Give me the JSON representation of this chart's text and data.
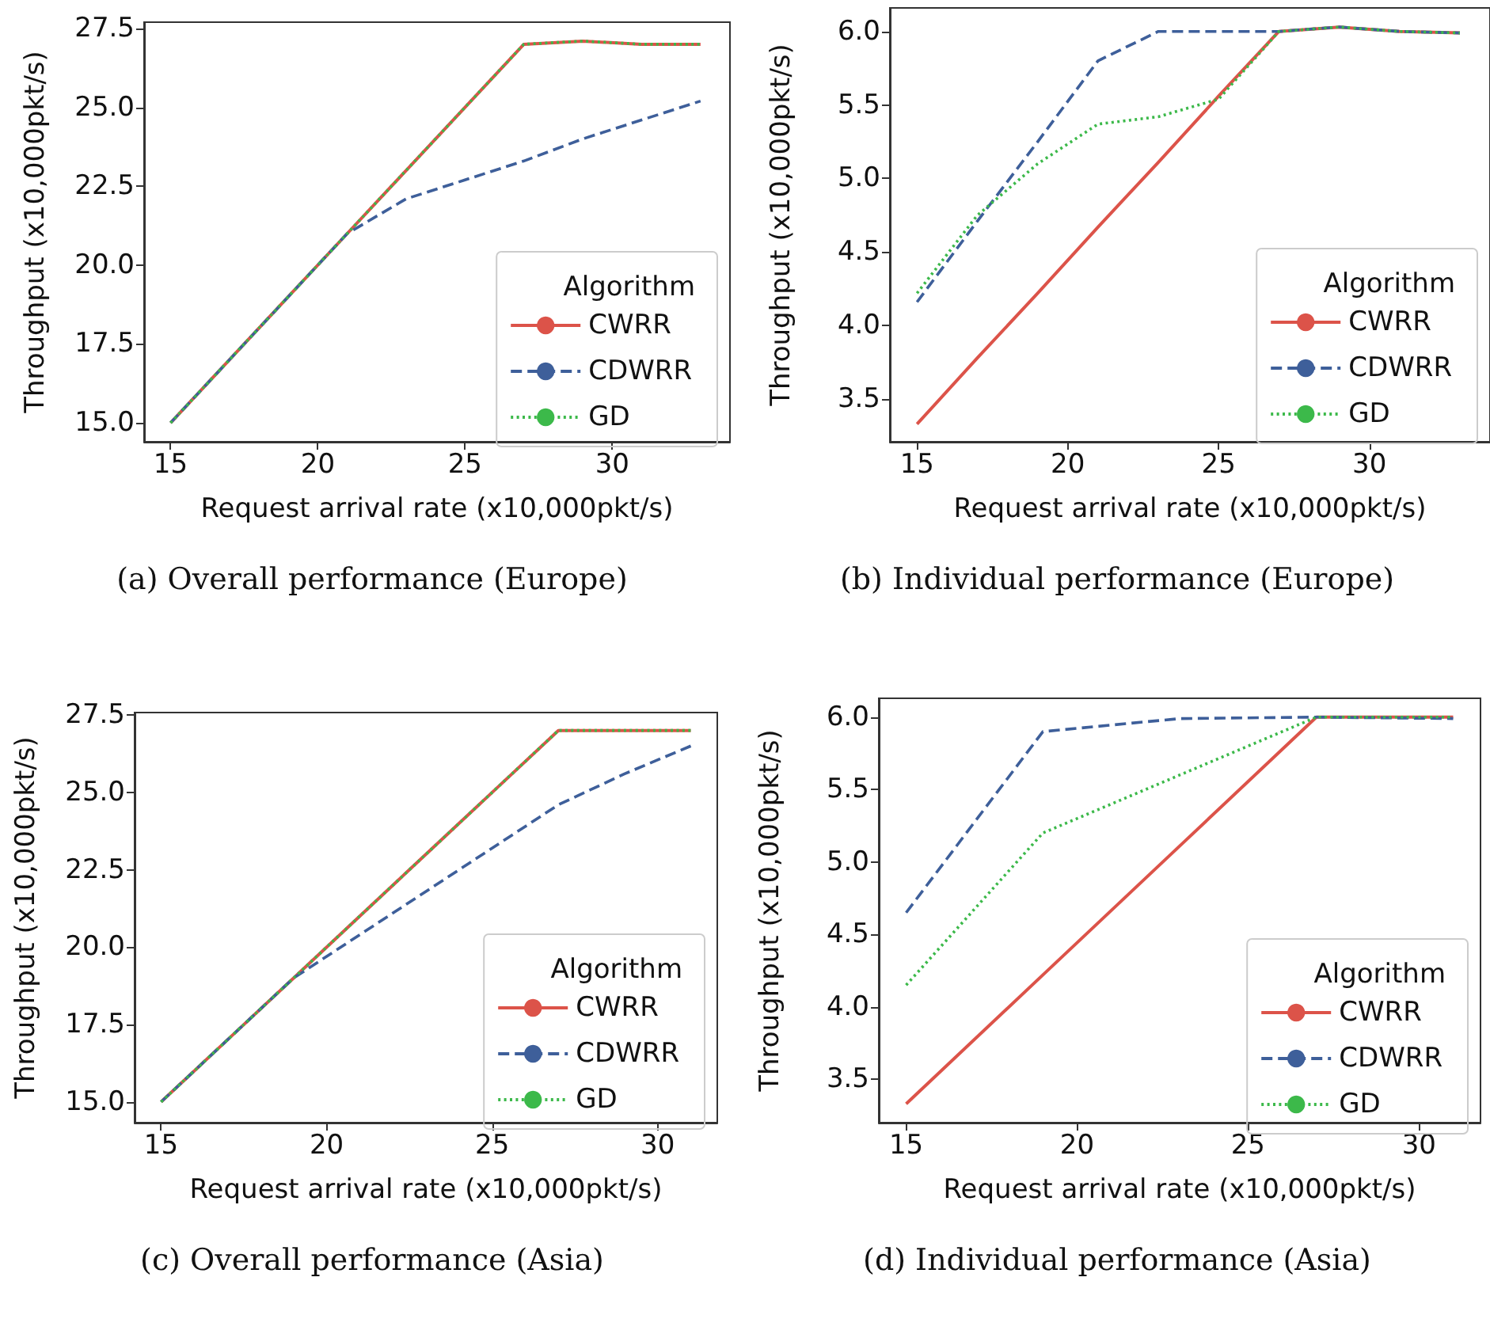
{
  "chart_data": [
    {
      "type": "line",
      "xlabel": "Request arrival rate (x10,000pkt/s)",
      "ylabel": "Throughput (x10,000pkt/s)",
      "legend_title": "Algorithm",
      "legend": "bottom right",
      "grid": false,
      "marker": "none",
      "annotations": [
        "(a) Overall performance (Europe)"
      ],
      "x": [
        15,
        17,
        19,
        21,
        23,
        25,
        27,
        29,
        31,
        33
      ],
      "xlim": [
        14.1,
        34
      ],
      "xticks": [
        15,
        20,
        25,
        30
      ],
      "ylim": [
        14.4,
        27.7
      ],
      "yticks": [
        {
          "value": 15,
          "label": "15.0"
        },
        {
          "value": 17.5,
          "label": "17.5"
        },
        {
          "value": 20,
          "label": "20.0"
        },
        {
          "value": 22.5,
          "label": "22.5"
        },
        {
          "value": 25,
          "label": "25.0"
        },
        {
          "value": 27.5,
          "label": "27.5"
        }
      ],
      "series": [
        {
          "name": "CWRR",
          "color": "#dc5349",
          "line_style": "solid",
          "values": [
            15,
            17,
            19,
            21,
            23,
            25,
            27,
            27.1,
            27,
            27
          ]
        },
        {
          "name": "CDWRR",
          "color": "#3e5f9a",
          "line_style": "dashed",
          "values": [
            15,
            17,
            19,
            21,
            22.1,
            22.7,
            23.3,
            24,
            24.6,
            25.2
          ]
        },
        {
          "name": "GD",
          "color": "#3cb94a",
          "line_style": "dotted",
          "values": [
            15,
            17,
            19,
            21,
            23,
            25,
            27,
            27.1,
            27,
            27
          ]
        }
      ]
    },
    {
      "type": "line",
      "xlabel": "Request arrival rate (x10,000pkt/s)",
      "ylabel": "Throughput (x10,000pkt/s)",
      "legend_title": "Algorithm",
      "legend": "bottom right",
      "grid": false,
      "marker": "none",
      "annotations": [
        "(b) Individual performance (Europe)"
      ],
      "x": [
        15,
        17,
        19,
        21,
        23,
        25,
        27,
        29,
        31,
        33
      ],
      "xlim": [
        14.1,
        34
      ],
      "xticks": [
        15,
        20,
        25,
        30
      ],
      "ylim": [
        3.21,
        6.16
      ],
      "yticks": [
        {
          "value": 3.5,
          "label": "3.5"
        },
        {
          "value": 4,
          "label": "4.0"
        },
        {
          "value": 4.5,
          "label": "4.5"
        },
        {
          "value": 5,
          "label": "5.0"
        },
        {
          "value": 5.5,
          "label": "5.5"
        },
        {
          "value": 6,
          "label": "6.0"
        }
      ],
      "series": [
        {
          "name": "CWRR",
          "color": "#dc5349",
          "line_style": "solid",
          "values": [
            3.33,
            3.78,
            4.22,
            4.67,
            5.11,
            5.56,
            6,
            6.03,
            6,
            5.99
          ]
        },
        {
          "name": "CDWRR",
          "color": "#3e5f9a",
          "line_style": "dashed",
          "values": [
            4.16,
            4.71,
            5.25,
            5.8,
            6,
            6,
            6,
            6.03,
            6,
            5.99
          ]
        },
        {
          "name": "GD",
          "color": "#3cb94a",
          "line_style": "dotted",
          "values": [
            4.22,
            4.75,
            5.1,
            5.37,
            5.42,
            5.54,
            6,
            6.03,
            6,
            5.99
          ]
        }
      ]
    },
    {
      "type": "line",
      "xlabel": "Request arrival rate (x10,000pkt/s)",
      "ylabel": "Throughput (x10,000pkt/s)",
      "legend_title": "Algorithm",
      "legend": "bottom right",
      "grid": false,
      "marker": "none",
      "annotations": [
        "(c) Overall performance (Asia)"
      ],
      "x": [
        15,
        17,
        19,
        21,
        23,
        25,
        27,
        29,
        31
      ],
      "xlim": [
        14.2,
        31.8
      ],
      "xticks": [
        15,
        20,
        25,
        30
      ],
      "ylim": [
        14.33,
        27.58
      ],
      "yticks": [
        {
          "value": 15,
          "label": "15.0"
        },
        {
          "value": 17.5,
          "label": "17.5"
        },
        {
          "value": 20,
          "label": "20.0"
        },
        {
          "value": 22.5,
          "label": "22.5"
        },
        {
          "value": 25,
          "label": "25.0"
        },
        {
          "value": 27.5,
          "label": "27.5"
        }
      ],
      "series": [
        {
          "name": "CWRR",
          "color": "#dc5349",
          "line_style": "solid",
          "values": [
            15,
            17,
            19,
            21,
            23,
            25,
            27,
            27,
            27
          ]
        },
        {
          "name": "CDWRR",
          "color": "#3e5f9a",
          "line_style": "dashed",
          "values": [
            15,
            17,
            19,
            20.4,
            21.8,
            23.2,
            24.6,
            25.6,
            26.5
          ]
        },
        {
          "name": "GD",
          "color": "#3cb94a",
          "line_style": "dotted",
          "values": [
            15,
            17,
            19,
            21,
            23,
            25,
            27,
            27,
            27
          ]
        }
      ]
    },
    {
      "type": "line",
      "xlabel": "Request arrival rate (x10,000pkt/s)",
      "ylabel": "Throughput (x10,000pkt/s)",
      "legend_title": "Algorithm",
      "legend": "bottom right",
      "grid": false,
      "marker": "none",
      "annotations": [
        "(d) Individual performance (Asia)"
      ],
      "x": [
        15,
        19,
        23,
        27,
        31
      ],
      "xlim": [
        14.2,
        31.8
      ],
      "xticks": [
        15,
        20,
        25,
        30
      ],
      "ylim": [
        3.2,
        6.13
      ],
      "yticks": [
        {
          "value": 3.5,
          "label": "3.5"
        },
        {
          "value": 4,
          "label": "4.0"
        },
        {
          "value": 4.5,
          "label": "4.5"
        },
        {
          "value": 5,
          "label": "5.0"
        },
        {
          "value": 5.5,
          "label": "5.5"
        },
        {
          "value": 6,
          "label": "6.0"
        }
      ],
      "series": [
        {
          "name": "CWRR",
          "color": "#dc5349",
          "line_style": "solid",
          "values": [
            3.33,
            4.22,
            5.11,
            6,
            6
          ]
        },
        {
          "name": "CDWRR",
          "color": "#3e5f9a",
          "line_style": "dashed",
          "values": [
            4.65,
            5.9,
            5.99,
            6,
            5.99
          ]
        },
        {
          "name": "GD",
          "color": "#3cb94a",
          "line_style": "dotted",
          "values": [
            4.15,
            5.2,
            5.6,
            6,
            6
          ]
        }
      ]
    }
  ]
}
